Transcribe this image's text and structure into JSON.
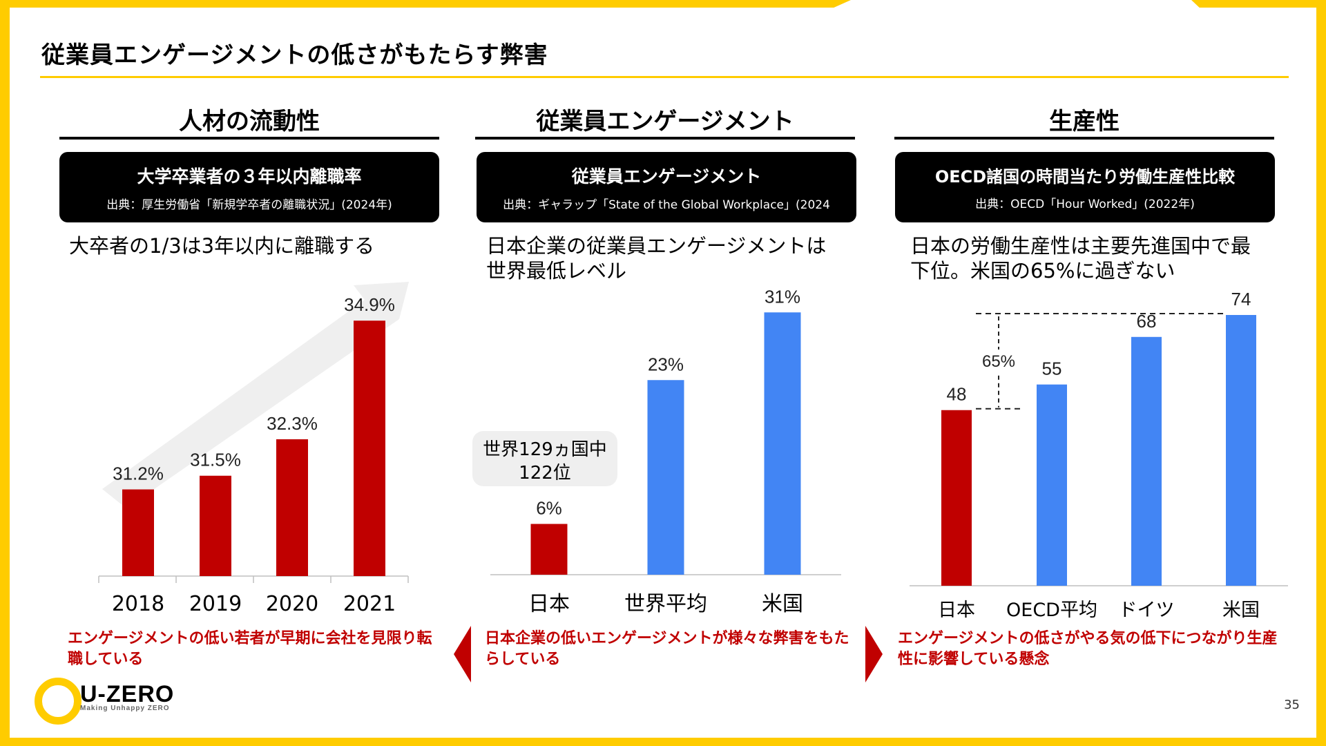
{
  "page": {
    "title": "従業員エンゲージメントの低さがもたらす弊害",
    "number": "35"
  },
  "sections": [
    {
      "title": "人材の流動性",
      "banner_title": "大学卒業者の３年以内離職率",
      "banner_source": "出典：厚生労働省「新規学卒者の離職状況」(2024年)",
      "lead": "大卒者の1/3は3年以内に離職する",
      "conclusion": "エンゲージメントの低い若者が早期に会社を見限り転職している"
    },
    {
      "title": "従業員エンゲージメント",
      "banner_title": "従業員エンゲージメント",
      "banner_source": "出典：ギャラップ「State of the Global Workplace」(2024",
      "lead": "日本企業の従業員エンゲージメントは世界最低レベル",
      "conclusion": "日本企業の低いエンゲージメントが様々な弊害をもたらしている",
      "callout": "世界129ヵ国中122位"
    },
    {
      "title": "生産性",
      "banner_title": "OECD諸国の時間当たり労働生産性比較",
      "banner_source": "出典：OECD「Hour Worked」(2022年)",
      "lead": "日本の労働生産性は主要先進国中で最下位。米国の65%に過ぎない",
      "conclusion": "エンゲージメントの低さがやる気の低下につながり生産性に影響している懸念"
    }
  ],
  "colors": {
    "accent_yellow": "#FFCC00",
    "red": "#C00000",
    "blue": "#4285F4",
    "arrow_gray": "#EFEFEF"
  },
  "chart_data": [
    {
      "type": "bar",
      "title": "大学卒業者の３年以内離職率",
      "categories": [
        "2018",
        "2019",
        "2020",
        "2021"
      ],
      "values": [
        31.2,
        31.5,
        32.3,
        34.9
      ],
      "labels": [
        "31.2%",
        "31.5%",
        "32.3%",
        "34.9%"
      ],
      "unit": "%",
      "colors": [
        "#C00000",
        "#C00000",
        "#C00000",
        "#C00000"
      ],
      "ylim": [
        29.3,
        35.6
      ]
    },
    {
      "type": "bar",
      "title": "従業員エンゲージメント",
      "categories": [
        "日本",
        "世界平均",
        "米国"
      ],
      "values": [
        6,
        23,
        31
      ],
      "labels": [
        "6%",
        "23%",
        "31%"
      ],
      "unit": "%",
      "colors": [
        "#C00000",
        "#4285F4",
        "#4285F4"
      ],
      "ylim": [
        0,
        32
      ]
    },
    {
      "type": "bar",
      "title": "OECD諸国の時間当たり労働生産性比較",
      "categories": [
        "日本",
        "OECD平均",
        "ドイツ",
        "米国"
      ],
      "values": [
        48,
        55,
        68,
        74
      ],
      "labels": [
        "48",
        "55",
        "68",
        "74"
      ],
      "colors": [
        "#C00000",
        "#4285F4",
        "#4285F4",
        "#4285F4"
      ],
      "ylim": [
        0,
        74
      ],
      "annotation": "65%"
    }
  ]
}
